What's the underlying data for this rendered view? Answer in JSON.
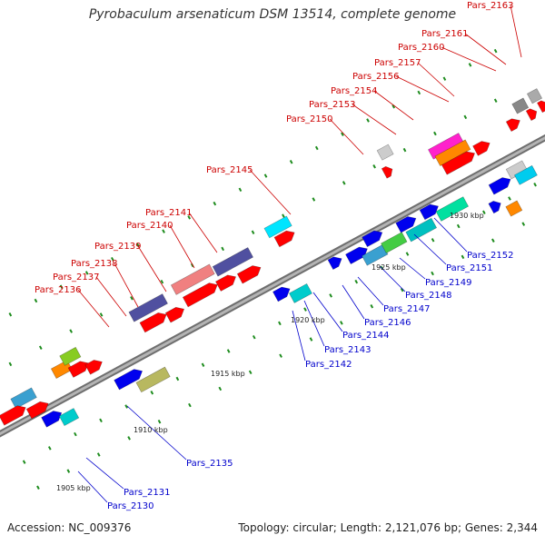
{
  "title": "Pyrobaculum arsenaticum DSM 13514, complete genome",
  "footer": {
    "accession": "Accession: NC_009376",
    "summary": "Topology: circular; Length: 2,121,076 bp; Genes: 2,344"
  },
  "colors": {
    "backbone": "#8c8c8c",
    "forward_label": "#cc0000",
    "reverse_label": "#0000cc",
    "forward_gene": "#ff0000",
    "reverse_gene": "#0000ee",
    "tick": "#1e8c1e"
  },
  "scale_labels": [
    "1905 kbp",
    "1910 kbp",
    "1915 kbp",
    "1920 kbp",
    "1925 kbp",
    "1930 kbp"
  ],
  "forward_labels": [
    "Pars_2136",
    "Pars_2137",
    "Pars_2138",
    "Pars_2139",
    "Pars_2140",
    "Pars_2141",
    "Pars_2145",
    "Pars_2150",
    "Pars_2153",
    "Pars_2154",
    "Pars_2156",
    "Pars_2157",
    "Pars_2160",
    "Pars_2161",
    "Pars_2163"
  ],
  "reverse_labels": [
    "Pars_2130",
    "Pars_2131",
    "Pars_2135",
    "Pars_2142",
    "Pars_2143",
    "Pars_2144",
    "Pars_2146",
    "Pars_2147",
    "Pars_2148",
    "Pars_2149",
    "Pars_2151",
    "Pars_2152"
  ]
}
